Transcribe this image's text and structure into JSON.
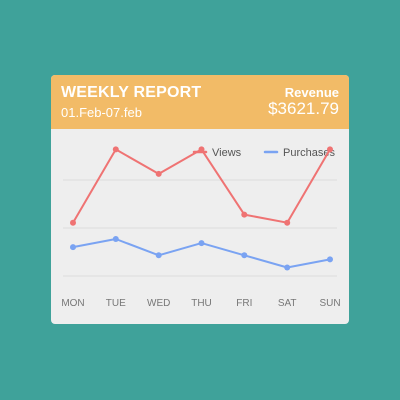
{
  "header": {
    "title": "WEEKLY REPORT",
    "date_range": "01.Feb-07.feb",
    "metric_label": "Revenue",
    "metric_value": "$3621.79"
  },
  "colors": {
    "background": "#3fa29a",
    "header": "#f2bb67",
    "card": "#eeeeee",
    "views": "#ef7373",
    "purchases": "#7aa3f2"
  },
  "chart_data": {
    "type": "line",
    "categories": [
      "MON",
      "TUE",
      "WED",
      "THU",
      "FRI",
      "SAT",
      "SUN"
    ],
    "series": [
      {
        "name": "Views",
        "color": "#ef7373",
        "values": [
          29,
          38,
          35,
          38,
          30,
          29,
          38
        ]
      },
      {
        "name": "Purchases",
        "color": "#7aa3f2",
        "values": [
          26,
          27,
          25,
          26.5,
          25,
          23.5,
          24.5
        ]
      }
    ],
    "ylim": [
      20,
      41
    ],
    "grid": true,
    "legend_position": "top-right",
    "title": "",
    "xlabel": "",
    "ylabel": ""
  }
}
